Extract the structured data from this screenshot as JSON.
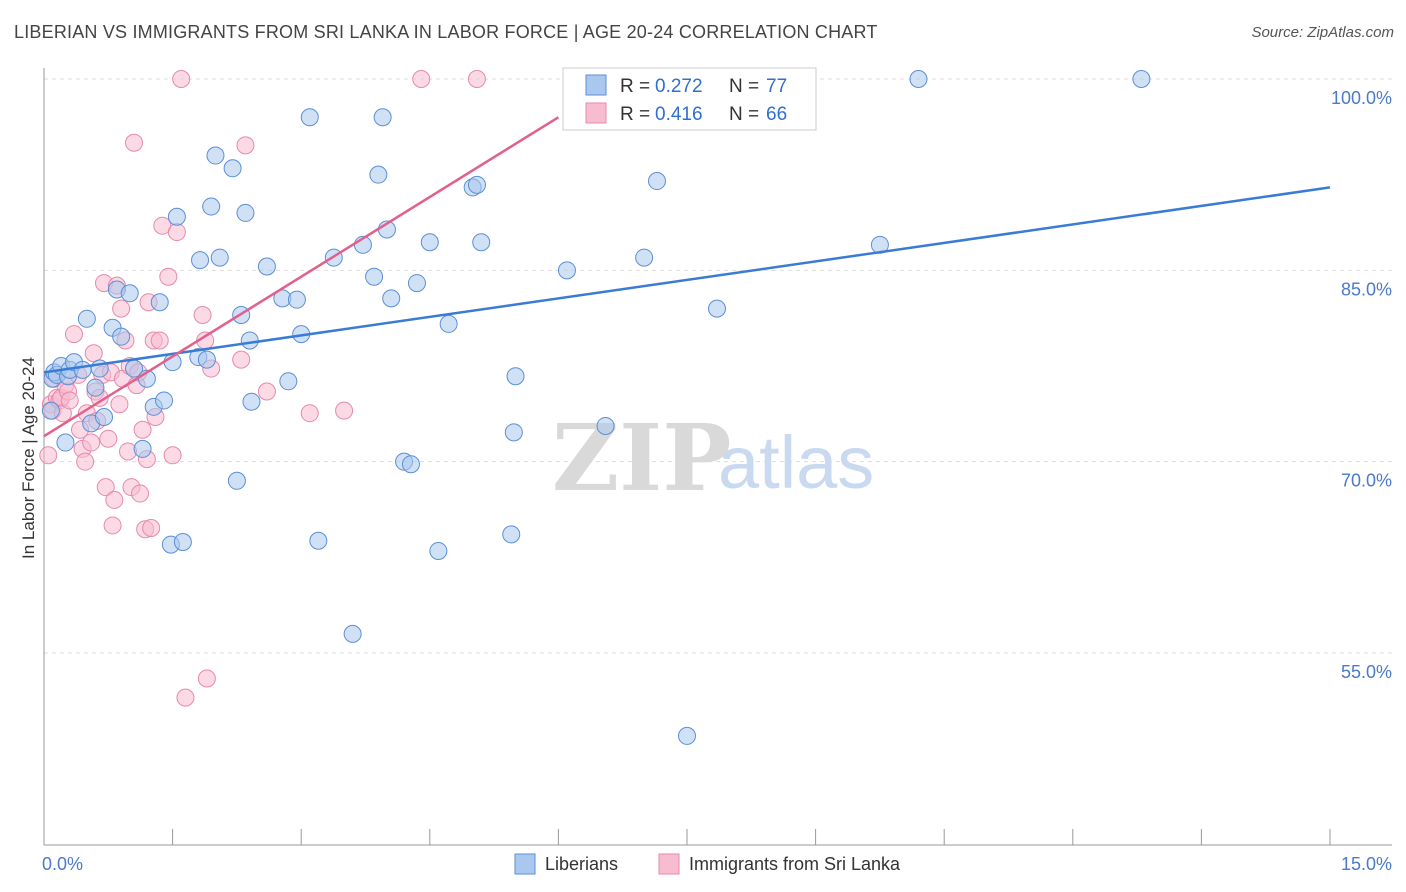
{
  "title": "LIBERIAN VS IMMIGRANTS FROM SRI LANKA IN LABOR FORCE | AGE 20-24 CORRELATION CHART",
  "source": "Source: ZipAtlas.com",
  "watermark": {
    "part1": "ZIP",
    "part2": "atlas"
  },
  "colors": {
    "blue_fill": "#aac8ef",
    "blue_stroke": "#5b8fd6",
    "blue_line": "#3a7bd5",
    "pink_fill": "#f7bcd0",
    "pink_stroke": "#e68aab",
    "pink_line": "#e0608e",
    "grid": "#dddddd",
    "axis": "#999999"
  },
  "chart_data": {
    "type": "scatter",
    "title": "LIBERIAN VS IMMIGRANTS FROM SRI LANKA IN LABOR FORCE | AGE 20-24 CORRELATION CHART",
    "xlabel": "",
    "ylabel": "In Labor Force | Age 20-24",
    "xlim": [
      0,
      15
    ],
    "ylim": [
      42.5,
      101.5
    ],
    "x_tick_labels": [
      "0.0%",
      "15.0%"
    ],
    "y_ticks": [
      55,
      70,
      85,
      100
    ],
    "y_tick_labels": [
      "55.0%",
      "70.0%",
      "85.0%",
      "100.0%"
    ],
    "legend_stats": [
      {
        "r_label": "R = ",
        "r_value": "0.272",
        "n_label": "N = ",
        "n_value": "77"
      },
      {
        "r_label": "R = ",
        "r_value": "0.416",
        "n_label": "N = ",
        "n_value": "66"
      }
    ],
    "series": [
      {
        "name": "Liberians",
        "color": "#aac8ef",
        "trend": {
          "x": [
            0.0,
            15.0
          ],
          "y": [
            77.0,
            91.5
          ]
        },
        "points": [
          [
            0.08,
            74.0
          ],
          [
            0.1,
            76.5
          ],
          [
            0.12,
            77.0
          ],
          [
            0.15,
            76.8
          ],
          [
            0.2,
            77.5
          ],
          [
            0.25,
            71.5
          ],
          [
            0.28,
            76.7
          ],
          [
            0.3,
            77.2
          ],
          [
            0.35,
            77.8
          ],
          [
            0.45,
            77.2
          ],
          [
            0.5,
            81.2
          ],
          [
            0.55,
            73.0
          ],
          [
            0.6,
            75.8
          ],
          [
            0.65,
            77.3
          ],
          [
            0.7,
            73.5
          ],
          [
            0.8,
            80.5
          ],
          [
            0.85,
            83.5
          ],
          [
            0.9,
            79.8
          ],
          [
            1.0,
            83.2
          ],
          [
            1.05,
            77.3
          ],
          [
            1.15,
            71.0
          ],
          [
            1.2,
            76.5
          ],
          [
            1.28,
            74.3
          ],
          [
            1.35,
            82.5
          ],
          [
            1.4,
            74.8
          ],
          [
            1.48,
            63.5
          ],
          [
            1.5,
            77.8
          ],
          [
            1.55,
            89.2
          ],
          [
            1.62,
            63.7
          ],
          [
            1.8,
            78.2
          ],
          [
            1.82,
            85.8
          ],
          [
            1.9,
            78.0
          ],
          [
            1.95,
            90.0
          ],
          [
            2.0,
            94.0
          ],
          [
            2.05,
            86.0
          ],
          [
            2.2,
            93.0
          ],
          [
            2.25,
            68.5
          ],
          [
            2.3,
            81.5
          ],
          [
            2.35,
            89.5
          ],
          [
            2.4,
            79.5
          ],
          [
            2.42,
            74.7
          ],
          [
            2.6,
            85.3
          ],
          [
            2.78,
            82.8
          ],
          [
            2.85,
            76.3
          ],
          [
            2.95,
            82.7
          ],
          [
            3.0,
            80.0
          ],
          [
            3.1,
            97.0
          ],
          [
            3.2,
            63.8
          ],
          [
            3.38,
            86.0
          ],
          [
            3.6,
            56.5
          ],
          [
            3.72,
            87.0
          ],
          [
            3.85,
            84.5
          ],
          [
            3.9,
            92.5
          ],
          [
            3.95,
            97.0
          ],
          [
            4.0,
            88.2
          ],
          [
            4.05,
            82.8
          ],
          [
            4.2,
            70.0
          ],
          [
            4.28,
            69.8
          ],
          [
            4.35,
            84.0
          ],
          [
            4.5,
            87.2
          ],
          [
            4.6,
            63.0
          ],
          [
            4.72,
            80.8
          ],
          [
            5.0,
            91.5
          ],
          [
            5.05,
            91.7
          ],
          [
            5.1,
            87.2
          ],
          [
            5.45,
            64.3
          ],
          [
            5.48,
            72.3
          ],
          [
            5.5,
            76.7
          ],
          [
            6.1,
            85.0
          ],
          [
            6.55,
            72.8
          ],
          [
            7.0,
            86.0
          ],
          [
            7.15,
            92.0
          ],
          [
            7.5,
            48.5
          ],
          [
            7.85,
            82.0
          ],
          [
            9.75,
            87.0
          ],
          [
            10.2,
            100.0
          ],
          [
            12.8,
            100.0
          ]
        ]
      },
      {
        "name": "Immigrants from Sri Lanka",
        "color": "#f7bcd0",
        "trend": {
          "x": [
            0.0,
            6.0
          ],
          "y": [
            72.0,
            97.0
          ]
        },
        "points": [
          [
            0.05,
            70.5
          ],
          [
            0.08,
            74.5
          ],
          [
            0.1,
            74.0
          ],
          [
            0.12,
            76.5
          ],
          [
            0.15,
            75.0
          ],
          [
            0.18,
            74.8
          ],
          [
            0.2,
            75.0
          ],
          [
            0.22,
            73.8
          ],
          [
            0.25,
            76.0
          ],
          [
            0.28,
            75.5
          ],
          [
            0.3,
            74.8
          ],
          [
            0.35,
            80.0
          ],
          [
            0.4,
            76.8
          ],
          [
            0.42,
            72.5
          ],
          [
            0.45,
            71.0
          ],
          [
            0.48,
            70.0
          ],
          [
            0.5,
            73.8
          ],
          [
            0.55,
            71.5
          ],
          [
            0.58,
            78.5
          ],
          [
            0.6,
            75.5
          ],
          [
            0.62,
            73.2
          ],
          [
            0.65,
            75.0
          ],
          [
            0.68,
            76.8
          ],
          [
            0.7,
            84.0
          ],
          [
            0.72,
            68.0
          ],
          [
            0.75,
            71.8
          ],
          [
            0.78,
            77.0
          ],
          [
            0.8,
            65.0
          ],
          [
            0.82,
            67.0
          ],
          [
            0.85,
            83.8
          ],
          [
            0.88,
            74.5
          ],
          [
            0.9,
            82.0
          ],
          [
            0.92,
            76.5
          ],
          [
            0.95,
            79.5
          ],
          [
            0.98,
            70.8
          ],
          [
            1.0,
            77.5
          ],
          [
            1.02,
            68.0
          ],
          [
            1.05,
            95.0
          ],
          [
            1.08,
            76.0
          ],
          [
            1.1,
            77.0
          ],
          [
            1.12,
            67.5
          ],
          [
            1.15,
            72.5
          ],
          [
            1.18,
            64.7
          ],
          [
            1.2,
            70.2
          ],
          [
            1.22,
            82.5
          ],
          [
            1.25,
            64.8
          ],
          [
            1.28,
            79.5
          ],
          [
            1.3,
            73.5
          ],
          [
            1.35,
            79.5
          ],
          [
            1.38,
            88.5
          ],
          [
            1.45,
            84.5
          ],
          [
            1.5,
            70.5
          ],
          [
            1.55,
            88.0
          ],
          [
            1.6,
            100.0
          ],
          [
            1.65,
            51.5
          ],
          [
            1.85,
            81.5
          ],
          [
            1.88,
            79.5
          ],
          [
            1.9,
            53.0
          ],
          [
            1.95,
            77.3
          ],
          [
            2.3,
            78.0
          ],
          [
            2.35,
            94.8
          ],
          [
            2.6,
            75.5
          ],
          [
            3.1,
            73.8
          ],
          [
            3.5,
            74.0
          ],
          [
            4.4,
            100.0
          ],
          [
            5.05,
            100.0
          ]
        ]
      }
    ]
  }
}
